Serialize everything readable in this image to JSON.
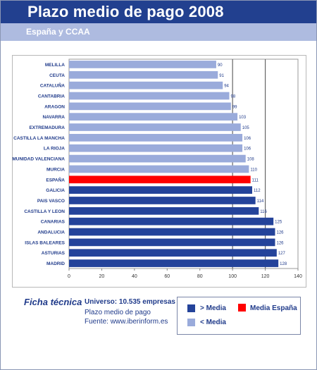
{
  "header": {
    "title": "Plazo medio de pago 2008"
  },
  "subheader": {
    "title": "España y CCAA"
  },
  "colors": {
    "above": "#24439a",
    "spain": "#ff0000",
    "below": "#9aabdb",
    "header": "#22408f",
    "subheader": "#aebbe0"
  },
  "chart_data": {
    "type": "bar",
    "orientation": "horizontal",
    "categories": [
      "MELILLA",
      "CEUTA",
      "CATALUÑA",
      "CANTABRIA",
      "ARAGON",
      "NAVARRA",
      "EXTREMADURA",
      "CASTILLA LA MANCHA",
      "LA RIOJA",
      "COMUNIDAD VALENCIANA",
      "MURCIA",
      "ESPAÑA",
      "GALICIA",
      "PAIS VASCO",
      "CASTILLA Y LEON",
      "CANARIAS",
      "ANDALUCIA",
      "ISLAS BALEARES",
      "ASTURIAS",
      "MADRID"
    ],
    "values": [
      90,
      91,
      94,
      98,
      99,
      103,
      105,
      106,
      106,
      108,
      110,
      111,
      112,
      114,
      116,
      125,
      126,
      126,
      127,
      128
    ],
    "groups": [
      "below",
      "below",
      "below",
      "below",
      "below",
      "below",
      "below",
      "below",
      "below",
      "below",
      "below",
      "spain",
      "above",
      "above",
      "above",
      "above",
      "above",
      "above",
      "above",
      "above"
    ],
    "xlim": [
      0,
      140
    ],
    "xticks": [
      0,
      20,
      40,
      60,
      80,
      100,
      120,
      140
    ],
    "reference_lines": [
      100,
      120
    ],
    "grid": false
  },
  "ficha": {
    "title": "Ficha técnica",
    "universo": "Universo: 10.535 empresas",
    "line1": "Plazo medio de pago",
    "line2": "Fuente: www.iberinform.es"
  },
  "legend": {
    "above": "> Media",
    "spain": "Media España",
    "below": "< Media"
  }
}
